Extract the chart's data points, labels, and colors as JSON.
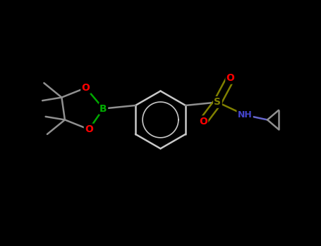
{
  "background": "#000000",
  "atom_colors": {
    "B": "#00aa00",
    "O": "#ff0000",
    "S": "#888800",
    "N": "#000088",
    "C": "#404040",
    "H": "#ffffff"
  },
  "bond_color": "#c0c0c0",
  "bond_width": 1.8,
  "figsize": [
    4.55,
    3.5
  ],
  "dpi": 100
}
